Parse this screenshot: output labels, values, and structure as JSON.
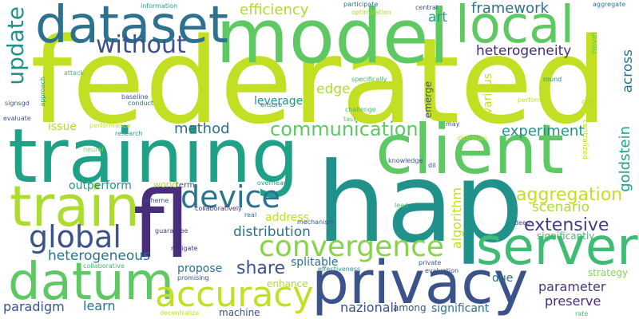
{
  "word_cloud": {
    "colors": {
      "background": "#ffffff",
      "lime": "#c2df23",
      "yellow_green": "#addc30",
      "light_green": "#86d549",
      "green": "#5ec962",
      "mint": "#3fbc73",
      "teal_green": "#28ae80",
      "teal": "#1fa187",
      "cyan": "#21918c",
      "steel_blue": "#2c728e",
      "slate": "#3b528b",
      "indigo": "#443983",
      "purple": "#472d7b",
      "deep_purple": "#440154"
    },
    "words": [
      {
        "text": "federated",
        "weight": 1.0,
        "color": "#c2df23"
      },
      {
        "text": "hap",
        "weight": 0.92,
        "color": "#21918c"
      },
      {
        "text": "model",
        "weight": 0.62,
        "color": "#5ec962"
      },
      {
        "text": "training",
        "weight": 0.62,
        "color": "#1fa187"
      },
      {
        "text": "fl",
        "weight": 0.6,
        "color": "#472d7b"
      },
      {
        "text": "client",
        "weight": 0.55,
        "color": "#5ec962"
      },
      {
        "text": "privacy",
        "weight": 0.5,
        "color": "#3b528b"
      },
      {
        "text": "dataset",
        "weight": 0.42,
        "color": "#2c728e"
      },
      {
        "text": "local",
        "weight": 0.42,
        "color": "#5ec962"
      },
      {
        "text": "train",
        "weight": 0.45,
        "color": "#addc30"
      },
      {
        "text": "datum",
        "weight": 0.42,
        "color": "#5ec962"
      },
      {
        "text": "server",
        "weight": 0.42,
        "color": "#3fbc73"
      },
      {
        "text": "accuracy",
        "weight": 0.3,
        "color": "#c2df23"
      },
      {
        "text": "convergence",
        "weight": 0.25,
        "color": "#86d549"
      },
      {
        "text": "global",
        "weight": 0.25,
        "color": "#3b528b"
      },
      {
        "text": "device",
        "weight": 0.25,
        "color": "#2c728e"
      },
      {
        "text": "without",
        "weight": 0.2,
        "color": "#3b528b"
      },
      {
        "text": "update",
        "weight": 0.2,
        "color": "#21918c"
      },
      {
        "text": "communication",
        "weight": 0.16,
        "color": "#5ec962"
      },
      {
        "text": "aggregation",
        "weight": 0.15,
        "color": "#c2df23"
      },
      {
        "text": "extensive",
        "weight": 0.15,
        "color": "#443983"
      },
      {
        "text": "share",
        "weight": 0.15,
        "color": "#3b528b"
      },
      {
        "text": "efficiency",
        "weight": 0.12,
        "color": "#addc30"
      },
      {
        "text": "framework",
        "weight": 0.12,
        "color": "#2c728e"
      },
      {
        "text": "heterogeneity",
        "weight": 0.11,
        "color": "#472d7b"
      },
      {
        "text": "across",
        "weight": 0.11,
        "color": "#2c728e"
      },
      {
        "text": "goldstein",
        "weight": 0.11,
        "color": "#1fa187"
      },
      {
        "text": "method",
        "weight": 0.11,
        "color": "#2c728e"
      },
      {
        "text": "experiment",
        "weight": 0.11,
        "color": "#21918c"
      },
      {
        "text": "art",
        "weight": 0.11,
        "color": "#1fa187"
      },
      {
        "text": "edge",
        "weight": 0.11,
        "color": "#addc30"
      },
      {
        "text": "scenario",
        "weight": 0.11,
        "color": "#addc30"
      },
      {
        "text": "distribution",
        "weight": 0.11,
        "color": "#2c728e"
      },
      {
        "text": "heterogeneous",
        "weight": 0.11,
        "color": "#2c728e"
      },
      {
        "text": "parameter",
        "weight": 0.1,
        "color": "#443983"
      },
      {
        "text": "preserve",
        "weight": 0.1,
        "color": "#472d7b"
      },
      {
        "text": "learn",
        "weight": 0.1,
        "color": "#2c728e"
      },
      {
        "text": "paradigm",
        "weight": 0.1,
        "color": "#3b528b"
      },
      {
        "text": "nazionali",
        "weight": 0.1,
        "color": "#3b528b"
      },
      {
        "text": "leverage",
        "weight": 0.09,
        "color": "#21918c"
      },
      {
        "text": "issue",
        "weight": 0.09,
        "color": "#addc30"
      },
      {
        "text": "outperform",
        "weight": 0.09,
        "color": "#21918c"
      },
      {
        "text": "address",
        "weight": 0.09,
        "color": "#c2df23"
      },
      {
        "text": "algorithm",
        "weight": 0.09,
        "color": "#c2df23"
      },
      {
        "text": "propose",
        "weight": 0.09,
        "color": "#2c728e"
      },
      {
        "text": "splitable",
        "weight": 0.09,
        "color": "#2c728e"
      },
      {
        "text": "due",
        "weight": 0.09,
        "color": "#2c728e"
      },
      {
        "text": "various",
        "weight": 0.08,
        "color": "#c2df23"
      },
      {
        "text": "significant",
        "weight": 0.08,
        "color": "#2c728e"
      },
      {
        "text": "machine",
        "weight": 0.07,
        "color": "#3b528b"
      },
      {
        "text": "among",
        "weight": 0.07,
        "color": "#3b528b"
      },
      {
        "text": "strategy",
        "weight": 0.07,
        "color": "#86d549"
      },
      {
        "text": "enhance",
        "weight": 0.07,
        "color": "#addc30"
      },
      {
        "text": "term",
        "weight": 0.06,
        "color": "#3b528b"
      },
      {
        "text": "world",
        "weight": 0.06,
        "color": "#addc30"
      },
      {
        "text": "emerge",
        "weight": 0.06,
        "color": "#3b528b"
      },
      {
        "text": "significantly",
        "weight": 0.06,
        "color": "#3fbc73"
      },
      {
        "text": "centralized",
        "weight": 0.05,
        "color": "#c2df23"
      },
      {
        "text": "novel",
        "weight": 0.05,
        "color": "#5ec962"
      },
      {
        "text": "information",
        "weight": 0.04,
        "color": "#1fa187"
      },
      {
        "text": "participate",
        "weight": 0.04,
        "color": "#2c728e"
      },
      {
        "text": "central",
        "weight": 0.04,
        "color": "#3b528b"
      },
      {
        "text": "aggregate",
        "weight": 0.04,
        "color": "#2c728e"
      },
      {
        "text": "optimization",
        "weight": 0.04,
        "color": "#addc30"
      },
      {
        "text": "attack",
        "weight": 0.04,
        "color": "#3fbc73"
      },
      {
        "text": "round",
        "weight": 0.04,
        "color": "#21918c"
      },
      {
        "text": "approach",
        "weight": 0.04,
        "color": "#21918c"
      },
      {
        "text": "specifically",
        "weight": 0.04,
        "color": "#3fbc73"
      },
      {
        "text": "baseline",
        "weight": 0.04,
        "color": "#3b528b"
      },
      {
        "text": "conduct",
        "weight": 0.04,
        "color": "#2c728e"
      },
      {
        "text": "ensure",
        "weight": 0.04,
        "color": "#2c728e"
      },
      {
        "text": "perform",
        "weight": 0.04,
        "color": "#c2df23"
      },
      {
        "text": "cost",
        "weight": 0.04,
        "color": "#addc30"
      },
      {
        "text": "signsgd",
        "weight": 0.04,
        "color": "#3b528b"
      },
      {
        "text": "evaluate",
        "weight": 0.04,
        "color": "#3b528b"
      },
      {
        "text": "challenge",
        "weight": 0.04,
        "color": "#3fbc73"
      },
      {
        "text": "task",
        "weight": 0.04,
        "color": "#5ec962"
      },
      {
        "text": "performance",
        "weight": 0.04,
        "color": "#c2df23"
      },
      {
        "text": "research",
        "weight": 0.04,
        "color": "#1fa187"
      },
      {
        "text": "may",
        "weight": 0.04,
        "color": "#3b528b"
      },
      {
        "text": "distribute",
        "weight": 0.04,
        "color": "#c2df23"
      },
      {
        "text": "neural",
        "weight": 0.04,
        "color": "#86d549"
      },
      {
        "text": "knowledge",
        "weight": 0.04,
        "color": "#3b528b"
      },
      {
        "text": "dil",
        "weight": 0.04,
        "color": "#3b528b"
      },
      {
        "text": "overhead",
        "weight": 0.04,
        "color": "#1fa187"
      },
      {
        "text": "scheme",
        "weight": 0.04,
        "color": "#3b528b"
      },
      {
        "text": "collaboratively",
        "weight": 0.04,
        "color": "#472d7b"
      },
      {
        "text": "lead",
        "weight": 0.04,
        "color": "#3fbc73"
      },
      {
        "text": "real",
        "weight": 0.04,
        "color": "#2c728e"
      },
      {
        "text": "mechanism",
        "weight": 0.04,
        "color": "#3b528b"
      },
      {
        "text": "deep",
        "weight": 0.04,
        "color": "#3b528b"
      },
      {
        "text": "guarantee",
        "weight": 0.04,
        "color": "#443983"
      },
      {
        "text": "mitigate",
        "weight": 0.04,
        "color": "#472d7b"
      },
      {
        "text": "private",
        "weight": 0.04,
        "color": "#3b528b"
      },
      {
        "text": "collaborative",
        "weight": 0.04,
        "color": "#3fbc73"
      },
      {
        "text": "effectiveness",
        "weight": 0.04,
        "color": "#21918c"
      },
      {
        "text": "evaluation",
        "weight": 0.04,
        "color": "#3b528b"
      },
      {
        "text": "promising",
        "weight": 0.04,
        "color": "#3b528b"
      },
      {
        "text": "rate",
        "weight": 0.04,
        "color": "#3fbc73"
      },
      {
        "text": "decentralize",
        "weight": 0.04,
        "color": "#c2df23"
      }
    ]
  }
}
